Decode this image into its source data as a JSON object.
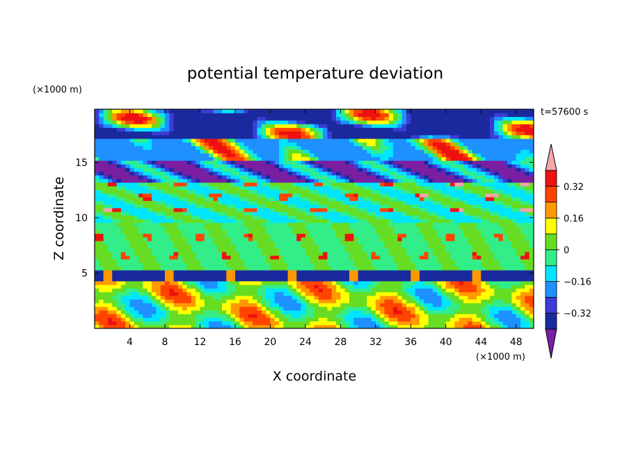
{
  "chart_data": {
    "type": "heatmap",
    "title": "potential temperature deviation",
    "xlabel": "X coordinate",
    "ylabel": "Z coordinate",
    "x_unit": "(×1000 m)",
    "y_unit": "(×1000 m)",
    "time_label": "t=57600 s",
    "xlim": [
      0,
      50
    ],
    "ylim": [
      0,
      19.8
    ],
    "x_ticks": [
      4,
      8,
      12,
      16,
      20,
      24,
      28,
      32,
      36,
      40,
      44,
      48
    ],
    "y_ticks": [
      5,
      10,
      15
    ],
    "x_tick_labels": [
      "4",
      "8",
      "12",
      "16",
      "20",
      "24",
      "28",
      "32",
      "36",
      "40",
      "44",
      "48"
    ],
    "y_tick_labels": [
      "5",
      "10",
      "15"
    ],
    "colorbar": {
      "levels": [
        -0.4,
        -0.32,
        -0.24,
        -0.16,
        -0.08,
        0,
        0.08,
        0.16,
        0.24,
        0.32,
        0.4
      ],
      "labels": [
        {
          "value": 0.32,
          "text": "0.32"
        },
        {
          "value": 0.16,
          "text": "0.16"
        },
        {
          "value": 0,
          "text": "0"
        },
        {
          "value": -0.16,
          "text": "−0.16"
        },
        {
          "value": -0.32,
          "text": "−0.32"
        }
      ],
      "colors": [
        "#7a1fa2",
        "#1a2a9e",
        "#3b3bd6",
        "#1e90ff",
        "#00e5ff",
        "#33ee88",
        "#66dd22",
        "#ffff00",
        "#ff9900",
        "#ff4400",
        "#ee1111",
        "#f4a7a7"
      ]
    }
  }
}
